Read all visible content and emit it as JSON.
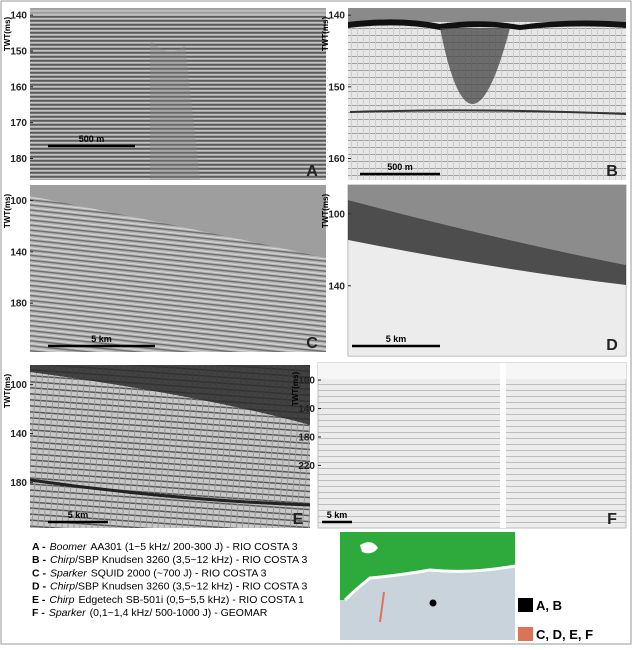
{
  "panels": [
    {
      "letter": "A",
      "axis_label": "TWT(ms)",
      "ylim": [
        138,
        186
      ],
      "yticks": [
        140,
        150,
        160,
        170,
        180
      ],
      "scale_bar": "500 m"
    },
    {
      "letter": "B",
      "axis_label": "TWT(ms)",
      "ylim": [
        139,
        163
      ],
      "yticks": [
        140,
        150,
        160
      ],
      "scale_bar": "500 m"
    },
    {
      "letter": "C",
      "axis_label": "TWT(ms)",
      "ylim": [
        88,
        218
      ],
      "yticks": [
        100,
        140,
        180
      ],
      "scale_bar": "5 km"
    },
    {
      "letter": "D",
      "axis_label": "TWT(ms)",
      "ylim": [
        84,
        179
      ],
      "yticks": [
        100,
        140
      ],
      "scale_bar": "5 km"
    },
    {
      "letter": "E",
      "axis_label": "TWT(ms)",
      "ylim": [
        84,
        217
      ],
      "yticks": [
        100,
        140,
        180
      ],
      "scale_bar": "5 km"
    },
    {
      "letter": "F",
      "axis_label": "TWT(ms)",
      "ylim": [
        76,
        308
      ],
      "yticks": [
        100,
        140,
        180,
        220
      ],
      "scale_bar": "5 km"
    }
  ],
  "legend": [
    {
      "letter": "A -",
      "method": "Boomer",
      "text": "AA301 (1~5 kHz/ 200-300 J) - RIO COSTA 3"
    },
    {
      "letter": "B -",
      "method": "Chirp",
      "text": "/SBP Knudsen 3260 (3,5~12 kHz) - RIO COSTA 3"
    },
    {
      "letter": "C -",
      "method": "Sparker",
      "text": "SQUID 2000 (~700 J) - RIO COSTA 3"
    },
    {
      "letter": "D -",
      "method": "Chirp",
      "text": "/SBP Knudsen 3260 (3,5~12 kHz) - RIO COSTA 3"
    },
    {
      "letter": "E -",
      "method": "Chirp",
      "text": "Edgetech SB-501i (0,5~5,5 kHz) - RIO COSTA 1"
    },
    {
      "letter": "F -",
      "method": "Sparker",
      "text": "(0,1~1,4 kHz/ 500-1000 J) - GEOMAR"
    }
  ],
  "map_legend": [
    {
      "label": "A, B",
      "color": "#000000"
    },
    {
      "label": "C, D, E, F",
      "color": "#d9745a"
    }
  ]
}
